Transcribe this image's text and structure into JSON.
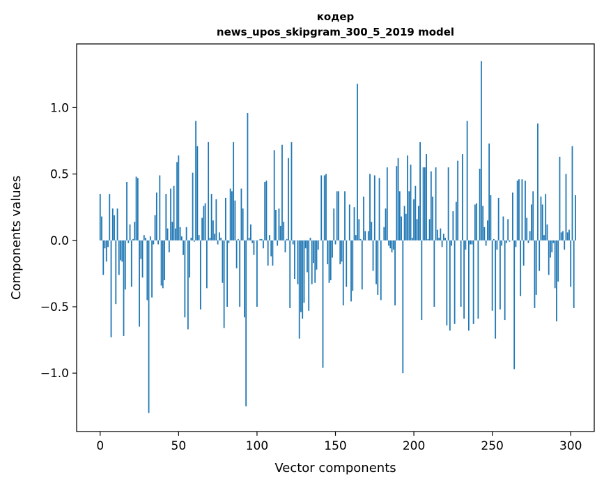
{
  "chart_data": {
    "type": "bar",
    "title": "кодер",
    "subtitle": "news_upos_skipgram_300_5_2019 model",
    "xlabel": "Vector components",
    "ylabel": "Components values",
    "x_range": [
      -15,
      315
    ],
    "ylim": [
      -1.44,
      1.48
    ],
    "x_ticks": [
      0,
      50,
      100,
      150,
      200,
      250,
      300
    ],
    "y_ticks": [
      -1.0,
      -0.5,
      0.0,
      0.5,
      1.0
    ],
    "x_tick_labels": [
      "0",
      "50",
      "100",
      "150",
      "200",
      "250",
      "300"
    ],
    "y_tick_labels": [
      "−1.0",
      "−0.5",
      "0.0",
      "0.5",
      "1.0"
    ],
    "bar_color": "#1f77b4",
    "grid": false,
    "legend": "none",
    "values": [
      0.35,
      0.18,
      -0.26,
      -0.06,
      -0.16,
      -0.05,
      0.35,
      -0.73,
      0.24,
      0.19,
      -0.48,
      0.24,
      -0.26,
      -0.15,
      -0.16,
      -0.72,
      -0.37,
      0.44,
      -0.02,
      0.12,
      -0.35,
      0.01,
      0.14,
      0.48,
      0.47,
      -0.65,
      -0.14,
      -0.28,
      0.04,
      0.02,
      -0.45,
      -1.3,
      0.03,
      -0.43,
      -0.03,
      0.19,
      0.36,
      -0.03,
      0.49,
      -0.34,
      -0.36,
      -0.3,
      0.35,
      0.09,
      -0.09,
      0.39,
      0.14,
      0.41,
      0.09,
      0.59,
      0.64,
      0.1,
      0.03,
      -0.11,
      -0.58,
      0.1,
      -0.67,
      -0.28,
      0.02,
      0.51,
      -0.01,
      0.9,
      0.71,
      0.04,
      -0.52,
      0.17,
      0.26,
      0.28,
      -0.36,
      0.74,
      0.02,
      0.35,
      0.15,
      0.05,
      0.31,
      -0.03,
      0.06,
      0.02,
      -0.32,
      -0.66,
      0.32,
      -0.5,
      -0.02,
      0.39,
      0.37,
      0.74,
      0.3,
      -0.21,
      0.01,
      -0.5,
      0.39,
      0.24,
      -0.58,
      -1.25,
      0.96,
      0.02,
      0.12,
      -0.02,
      -0.11,
      0.0,
      -0.5,
      0.0,
      0.01,
      0.01,
      -0.06,
      0.44,
      0.45,
      -0.19,
      0.04,
      -0.12,
      -0.19,
      0.68,
      0.23,
      -0.04,
      0.24,
      0.11,
      0.72,
      0.14,
      -0.09,
      0.01,
      0.62,
      -0.51,
      0.74,
      -0.03,
      -0.29,
      0.0,
      -0.33,
      -0.74,
      -0.54,
      -0.59,
      -0.47,
      -0.06,
      -0.24,
      -0.53,
      0.02,
      -0.33,
      -0.17,
      -0.32,
      -0.22,
      -0.07,
      0.0,
      0.49,
      -0.96,
      0.49,
      0.5,
      -0.18,
      -0.32,
      -0.3,
      -0.13,
      0.24,
      -0.03,
      0.37,
      0.37,
      -0.18,
      -0.16,
      -0.49,
      0.37,
      -0.35,
      0.0,
      0.27,
      -0.46,
      -0.38,
      0.25,
      0.04,
      1.18,
      0.16,
      0.01,
      -0.37,
      0.33,
      0.07,
      0.0,
      0.07,
      0.5,
      0.14,
      -0.23,
      0.49,
      -0.33,
      -0.41,
      0.47,
      -0.45,
      0.0,
      0.1,
      0.24,
      0.55,
      -0.04,
      -0.06,
      -0.09,
      -0.07,
      -0.49,
      0.56,
      0.62,
      0.37,
      0.18,
      -1.0,
      0.26,
      0.2,
      0.64,
      0.37,
      0.57,
      0.02,
      0.31,
      0.41,
      0.16,
      0.26,
      0.74,
      -0.6,
      0.55,
      0.55,
      0.65,
      0.01,
      0.16,
      0.52,
      0.33,
      -0.5,
      0.55,
      0.08,
      0.02,
      0.09,
      -0.05,
      0.05,
      0.02,
      -0.64,
      0.55,
      -0.68,
      -0.04,
      0.22,
      -0.63,
      0.29,
      0.6,
      0.0,
      -0.5,
      0.65,
      -0.59,
      -0.07,
      0.9,
      -0.68,
      -0.03,
      -0.03,
      -0.63,
      0.27,
      0.28,
      -0.59,
      0.54,
      1.35,
      0.26,
      0.1,
      -0.04,
      0.15,
      0.73,
      0.34,
      -0.53,
      0.01,
      -0.74,
      -0.07,
      0.32,
      -0.52,
      -0.04,
      0.18,
      -0.6,
      -0.02,
      0.16,
      -0.01,
      0.0,
      0.36,
      -0.97,
      -0.05,
      0.45,
      0.46,
      -0.42,
      0.46,
      -0.19,
      0.45,
      0.17,
      -0.02,
      0.07,
      0.27,
      0.37,
      -0.51,
      -0.41,
      0.88,
      -0.23,
      0.33,
      0.27,
      0.04,
      0.35,
      0.12,
      -0.26,
      -0.13,
      -0.09,
      -0.02,
      -0.36,
      -0.61,
      -0.31,
      0.63,
      0.06,
      0.07,
      -0.07,
      0.5,
      0.06,
      0.08,
      -0.35,
      0.71,
      -0.51,
      0.34
    ]
  }
}
